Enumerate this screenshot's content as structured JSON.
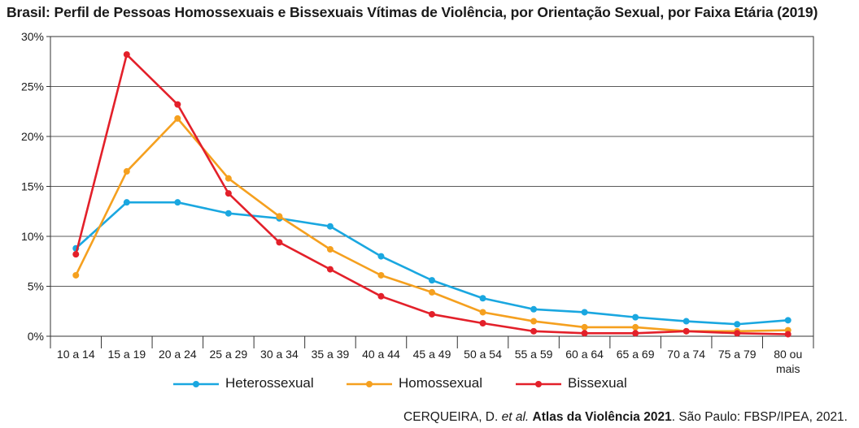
{
  "chart_data": {
    "type": "line",
    "title": "Brasil: Perfil de Pessoas Homossexuais e Bissexuais Vítimas de Violência, por Orientação Sexual, por Faixa Etária (2019)",
    "categories": [
      "10 a 14",
      "15 a 19",
      "20 a 24",
      "25 a 29",
      "30 a 34",
      "35 a 39",
      "40 a 44",
      "45 a 49",
      "50 a 54",
      "55 a 59",
      "60 a 64",
      "65 a 69",
      "70 a 74",
      "75 a 79",
      "80 ou mais"
    ],
    "y_ticks": [
      "0%",
      "5%",
      "10%",
      "15%",
      "20%",
      "25%",
      "30%"
    ],
    "ylim": [
      0,
      30
    ],
    "grid": true,
    "legend_position": "bottom",
    "series": [
      {
        "name": "Heterossexual",
        "color": "#1aa7e0",
        "values": [
          8.8,
          13.4,
          13.4,
          12.3,
          11.8,
          11.0,
          8.0,
          5.6,
          3.8,
          2.7,
          2.4,
          1.9,
          1.5,
          1.2,
          1.6
        ]
      },
      {
        "name": "Homossexual",
        "color": "#f5a01f",
        "values": [
          6.1,
          16.5,
          21.8,
          15.8,
          12.0,
          8.7,
          6.1,
          4.4,
          2.4,
          1.5,
          0.9,
          0.9,
          0.5,
          0.5,
          0.6
        ]
      },
      {
        "name": "Bissexual",
        "color": "#e3202a",
        "values": [
          8.2,
          28.2,
          23.2,
          14.3,
          9.4,
          6.7,
          4.0,
          2.2,
          1.3,
          0.5,
          0.3,
          0.3,
          0.5,
          0.3,
          0.2
        ]
      }
    ]
  },
  "source": {
    "prefix": "CERQUEIRA, D. ",
    "etal": "et al.",
    "space": " ",
    "book": "Atlas da Violência 2021",
    "suffix": ". São Paulo: FBSP/IPEA, 2021."
  }
}
